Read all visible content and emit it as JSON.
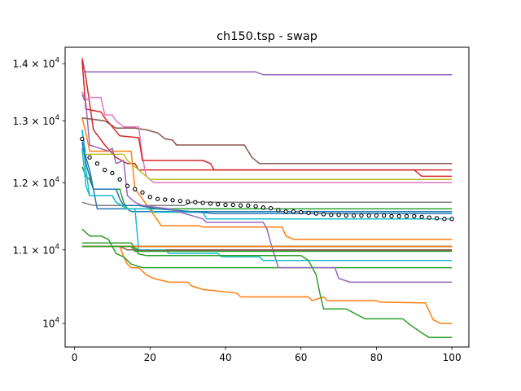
{
  "chart_data": {
    "type": "line",
    "title": "ch150.tsp - swap",
    "xlabel": "",
    "ylabel": "",
    "xlim": [
      -2.5,
      104.5
    ],
    "ylim": [
      9700,
      14300
    ],
    "y_scale": "log",
    "grid": false,
    "legend": "none",
    "x_ticks": [
      {
        "value": 0,
        "label": "0"
      },
      {
        "value": 20,
        "label": "20"
      },
      {
        "value": 40,
        "label": "40"
      },
      {
        "value": 60,
        "label": "60"
      },
      {
        "value": 80,
        "label": "80"
      },
      {
        "value": 100,
        "label": "100"
      }
    ],
    "y_ticks": [
      {
        "value": 10000,
        "base": "10",
        "exp": "4",
        "mult": ""
      },
      {
        "value": 11000,
        "base": "10",
        "exp": "4",
        "mult": "1.1 × "
      },
      {
        "value": 12000,
        "base": "10",
        "exp": "4",
        "mult": "1.2 × "
      },
      {
        "value": 13000,
        "base": "10",
        "exp": "4",
        "mult": "1.3 × "
      },
      {
        "value": 14000,
        "base": "10",
        "exp": "4",
        "mult": "1.4 × "
      }
    ],
    "series": [
      {
        "color": "#1f77b4",
        "points": [
          [
            2,
            12850
          ],
          [
            3,
            12400
          ],
          [
            4,
            12200
          ],
          [
            6,
            11600
          ],
          [
            14,
            11600
          ],
          [
            15,
            11560
          ],
          [
            100,
            11560
          ]
        ]
      },
      {
        "color": "#ff7f0e",
        "points": [
          [
            2,
            13050
          ],
          [
            3,
            12800
          ],
          [
            4,
            12500
          ],
          [
            15,
            12500
          ],
          [
            16,
            11900
          ],
          [
            18,
            11750
          ],
          [
            23,
            11350
          ],
          [
            33,
            11350
          ],
          [
            34,
            11330
          ],
          [
            55,
            11330
          ],
          [
            56,
            11200
          ],
          [
            58,
            11150
          ],
          [
            100,
            11150
          ]
        ]
      },
      {
        "color": "#2ca02c",
        "points": [
          [
            2,
            12250
          ],
          [
            3,
            12100
          ],
          [
            4,
            12050
          ],
          [
            5,
            11900
          ],
          [
            12,
            11900
          ],
          [
            13,
            11700
          ],
          [
            14,
            11600
          ],
          [
            100,
            11600
          ]
        ]
      },
      {
        "color": "#d62728",
        "points": [
          [
            2,
            14100
          ],
          [
            3,
            13750
          ],
          [
            4,
            13300
          ],
          [
            5,
            12850
          ],
          [
            8,
            12600
          ],
          [
            11,
            12400
          ],
          [
            13,
            12330
          ],
          [
            14,
            12300
          ],
          [
            16,
            12300
          ],
          [
            17,
            12200
          ],
          [
            100,
            12200
          ]
        ]
      },
      {
        "color": "#9467bd",
        "points": [
          [
            2,
            13950
          ],
          [
            3,
            13850
          ],
          [
            48,
            13850
          ],
          [
            50,
            13800
          ],
          [
            100,
            13800
          ]
        ]
      },
      {
        "color": "#8c564b",
        "points": [
          [
            2,
            13050
          ],
          [
            8,
            13000
          ],
          [
            11,
            12880
          ],
          [
            16,
            12880
          ],
          [
            19,
            12850
          ],
          [
            22,
            12800
          ],
          [
            24,
            12700
          ],
          [
            26,
            12680
          ],
          [
            27,
            12600
          ],
          [
            45,
            12600
          ],
          [
            47,
            12400
          ],
          [
            49,
            12300
          ],
          [
            100,
            12300
          ]
        ]
      },
      {
        "color": "#e377c2",
        "points": [
          [
            2,
            13500
          ],
          [
            3,
            13350
          ],
          [
            4,
            13400
          ],
          [
            7,
            13400
          ],
          [
            8,
            13100
          ],
          [
            10,
            13100
          ],
          [
            11,
            13000
          ],
          [
            13,
            12900
          ],
          [
            17,
            12900
          ],
          [
            18,
            12400
          ],
          [
            19,
            12100
          ],
          [
            21,
            12000
          ],
          [
            100,
            12000
          ]
        ]
      },
      {
        "color": "#7f7f7f",
        "points": [
          [
            2,
            11700
          ],
          [
            5,
            11650
          ],
          [
            29,
            11650
          ],
          [
            31,
            11700
          ],
          [
            100,
            11700
          ]
        ]
      },
      {
        "color": "#bcbd22",
        "points": [
          [
            2,
            12550
          ],
          [
            3,
            12450
          ],
          [
            13,
            12450
          ],
          [
            14,
            12350
          ],
          [
            15,
            12300
          ],
          [
            17,
            12200
          ],
          [
            18,
            12150
          ],
          [
            20,
            12050
          ],
          [
            100,
            12050
          ]
        ]
      },
      {
        "color": "#17becf",
        "points": [
          [
            2,
            12850
          ],
          [
            3,
            12200
          ],
          [
            4,
            11800
          ],
          [
            10,
            11800
          ],
          [
            11,
            11700
          ],
          [
            14,
            11600
          ],
          [
            20,
            11600
          ],
          [
            21,
            11550
          ],
          [
            34,
            11550
          ],
          [
            35,
            11450
          ],
          [
            100,
            11450
          ]
        ]
      },
      {
        "color": "#1f77b4",
        "points": [
          [
            2,
            12650
          ],
          [
            3,
            12300
          ],
          [
            4,
            12100
          ],
          [
            5,
            11900
          ],
          [
            11,
            11900
          ],
          [
            12,
            11750
          ],
          [
            13,
            11650
          ],
          [
            17,
            11650
          ],
          [
            22,
            11600
          ],
          [
            31,
            11560
          ],
          [
            35,
            11540
          ],
          [
            37,
            11530
          ],
          [
            100,
            11530
          ]
        ]
      },
      {
        "color": "#ff7f0e",
        "points": [
          [
            2,
            11050
          ],
          [
            12,
            11050
          ],
          [
            13,
            10900
          ],
          [
            14,
            10800
          ],
          [
            15,
            10750
          ],
          [
            17,
            10750
          ],
          [
            19,
            10650
          ],
          [
            21,
            10600
          ],
          [
            25,
            10550
          ],
          [
            30,
            10550
          ],
          [
            31,
            10500
          ],
          [
            34,
            10450
          ],
          [
            43,
            10400
          ],
          [
            44,
            10350
          ],
          [
            62,
            10350
          ],
          [
            63,
            10300
          ],
          [
            66,
            10350
          ],
          [
            67,
            10300
          ],
          [
            80,
            10300
          ],
          [
            81,
            10280
          ],
          [
            93,
            10270
          ],
          [
            95,
            10050
          ],
          [
            97,
            10000
          ],
          [
            100,
            10000
          ]
        ]
      },
      {
        "color": "#2ca02c",
        "points": [
          [
            2,
            11300
          ],
          [
            4,
            11200
          ],
          [
            7,
            11200
          ],
          [
            9,
            11150
          ],
          [
            11,
            10950
          ],
          [
            13,
            10900
          ],
          [
            15,
            10800
          ],
          [
            18,
            10750
          ],
          [
            100,
            10750
          ]
        ]
      },
      {
        "color": "#d62728",
        "points": [
          [
            2,
            14050
          ],
          [
            3,
            13200
          ],
          [
            7,
            13150
          ],
          [
            8,
            13050
          ],
          [
            12,
            12750
          ],
          [
            17,
            12720
          ],
          [
            18,
            12350
          ],
          [
            34,
            12350
          ],
          [
            36,
            12300
          ],
          [
            37,
            12200
          ],
          [
            90,
            12200
          ],
          [
            92,
            12100
          ],
          [
            100,
            12100
          ]
        ]
      },
      {
        "color": "#9467bd",
        "points": [
          [
            2,
            13450
          ],
          [
            3,
            13300
          ],
          [
            4,
            12600
          ],
          [
            9,
            12500
          ],
          [
            10,
            12550
          ],
          [
            11,
            12300
          ],
          [
            13,
            12350
          ],
          [
            14,
            11800
          ],
          [
            16,
            11700
          ],
          [
            18,
            11650
          ],
          [
            25,
            11600
          ],
          [
            34,
            11450
          ],
          [
            35,
            11400
          ],
          [
            50,
            11400
          ],
          [
            51,
            11300
          ],
          [
            52,
            11100
          ],
          [
            54,
            10750
          ],
          [
            69,
            10750
          ],
          [
            70,
            10600
          ],
          [
            73,
            10550
          ],
          [
            100,
            10550
          ]
        ]
      },
      {
        "color": "#8c564b",
        "points": [
          [
            2,
            11050
          ],
          [
            5,
            11050
          ],
          [
            15,
            11050
          ],
          [
            17,
            11000
          ],
          [
            100,
            11000
          ]
        ]
      },
      {
        "color": "#e377c2",
        "points": [
          [
            2,
            11050
          ],
          [
            11,
            11050
          ],
          [
            100,
            11050
          ]
        ]
      },
      {
        "color": "#7f7f7f",
        "points": [
          [
            2,
            11050
          ],
          [
            10,
            11050
          ],
          [
            100,
            11050
          ]
        ]
      },
      {
        "color": "#bcbd22",
        "points": [
          [
            2,
            11050
          ],
          [
            9,
            11050
          ],
          [
            100,
            11050
          ]
        ]
      },
      {
        "color": "#17becf",
        "points": [
          [
            2,
            12550
          ],
          [
            3,
            11950
          ],
          [
            4,
            11800
          ],
          [
            10,
            11800
          ],
          [
            11,
            11700
          ],
          [
            14,
            11600
          ],
          [
            16,
            11600
          ],
          [
            17,
            11000
          ],
          [
            24,
            11000
          ],
          [
            25,
            10950
          ],
          [
            38,
            10950
          ],
          [
            39,
            10900
          ],
          [
            49,
            10900
          ],
          [
            50,
            10850
          ],
          [
            100,
            10850
          ]
        ]
      },
      {
        "color": "#8c564b",
        "points": [
          [
            2,
            11050
          ],
          [
            12,
            11050
          ],
          [
            14,
            11000
          ],
          [
            16,
            11000
          ],
          [
            17,
            10990
          ],
          [
            100,
            10990
          ]
        ]
      },
      {
        "color": "#2ca02c",
        "points": [
          [
            2,
            11050
          ],
          [
            13,
            11050
          ],
          [
            100,
            11050
          ]
        ]
      },
      {
        "color": "#9467bd",
        "points": [
          [
            2,
            11050
          ],
          [
            14,
            11050
          ],
          [
            100,
            11050
          ]
        ]
      },
      {
        "color": "#ff7f0e",
        "points": [
          [
            2,
            11050
          ],
          [
            15,
            11050
          ],
          [
            100,
            11050
          ]
        ]
      },
      {
        "color": "#2ca02c",
        "points": [
          [
            2,
            11050
          ],
          [
            15,
            11050
          ],
          [
            16,
            10980
          ],
          [
            100,
            10980
          ]
        ]
      },
      {
        "color": "#2ca02c",
        "points": [
          [
            2,
            11100
          ],
          [
            15,
            11100
          ],
          [
            17,
            10940
          ],
          [
            19,
            10920
          ],
          [
            60,
            10920
          ],
          [
            62,
            10850
          ],
          [
            64,
            10650
          ],
          [
            65,
            10400
          ],
          [
            66,
            10190
          ],
          [
            72,
            10190
          ],
          [
            77,
            10060
          ],
          [
            79,
            10060
          ],
          [
            87,
            10060
          ],
          [
            89,
            9980
          ],
          [
            92,
            9880
          ],
          [
            94,
            9820
          ],
          [
            100,
            9820
          ]
        ]
      }
    ],
    "mean_markers": {
      "style": "open-circle",
      "color": "#000000",
      "points": [
        [
          2,
          12700
        ],
        [
          4,
          12400
        ],
        [
          6,
          12300
        ],
        [
          8,
          12200
        ],
        [
          10,
          12150
        ],
        [
          12,
          12050
        ],
        [
          14,
          11950
        ],
        [
          16,
          11900
        ],
        [
          18,
          11850
        ],
        [
          20,
          11780
        ],
        [
          22,
          11750
        ],
        [
          24,
          11740
        ],
        [
          26,
          11730
        ],
        [
          28,
          11720
        ],
        [
          30,
          11710
        ],
        [
          32,
          11700
        ],
        [
          34,
          11690
        ],
        [
          36,
          11680
        ],
        [
          38,
          11670
        ],
        [
          40,
          11660
        ],
        [
          42,
          11660
        ],
        [
          44,
          11650
        ],
        [
          46,
          11650
        ],
        [
          48,
          11640
        ],
        [
          50,
          11620
        ],
        [
          52,
          11610
        ],
        [
          54,
          11580
        ],
        [
          56,
          11560
        ],
        [
          58,
          11560
        ],
        [
          60,
          11550
        ],
        [
          62,
          11540
        ],
        [
          64,
          11530
        ],
        [
          66,
          11520
        ],
        [
          68,
          11510
        ],
        [
          70,
          11510
        ],
        [
          72,
          11500
        ],
        [
          74,
          11500
        ],
        [
          76,
          11500
        ],
        [
          78,
          11500
        ],
        [
          80,
          11500
        ],
        [
          82,
          11500
        ],
        [
          84,
          11490
        ],
        [
          86,
          11490
        ],
        [
          88,
          11490
        ],
        [
          90,
          11490
        ],
        [
          92,
          11480
        ],
        [
          94,
          11470
        ],
        [
          96,
          11460
        ],
        [
          98,
          11450
        ],
        [
          100,
          11450
        ]
      ]
    }
  }
}
